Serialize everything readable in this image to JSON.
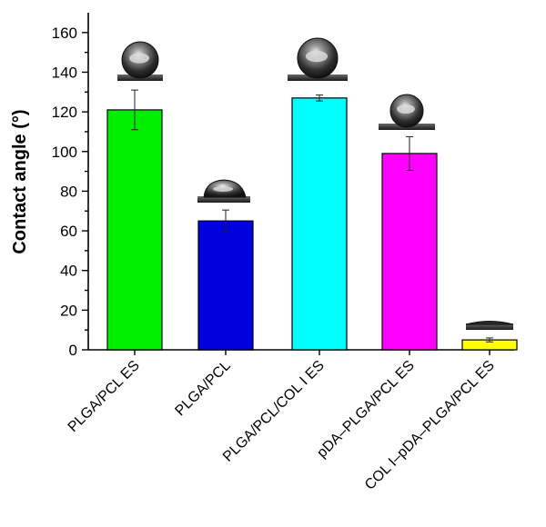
{
  "chart_data": {
    "type": "bar",
    "title": "",
    "xlabel": "",
    "ylabel": "Contact angle (°)",
    "ylim": [
      0,
      170
    ],
    "yticks": [
      0,
      20,
      40,
      60,
      80,
      100,
      120,
      140,
      160
    ],
    "grid": false,
    "categories": [
      "PLGA/PCL ES",
      "PLGA/PCL",
      "PLGA/PCL/COL I ES",
      "pDA–PLGA/PCL ES",
      "COL I–pDA–PLGA/PCL ES"
    ],
    "values": [
      121,
      65,
      127,
      99,
      5
    ],
    "errors": [
      10,
      5.5,
      1.5,
      8.5,
      1
    ],
    "colors": [
      "#00ee00",
      "#0000dd",
      "#00ffff",
      "#ff00ff",
      "#ffff00"
    ],
    "droplet_images": [
      {
        "category": "PLGA/PCL ES",
        "shape": "high-contact-droplet"
      },
      {
        "category": "PLGA/PCL",
        "shape": "flattened-droplet"
      },
      {
        "category": "PLGA/PCL/COL I ES",
        "shape": "high-contact-droplet"
      },
      {
        "category": "pDA–PLGA/PCL ES",
        "shape": "high-contact-droplet"
      },
      {
        "category": "COL I–pDA–PLGA/PCL ES",
        "shape": "spread-droplet"
      }
    ]
  }
}
